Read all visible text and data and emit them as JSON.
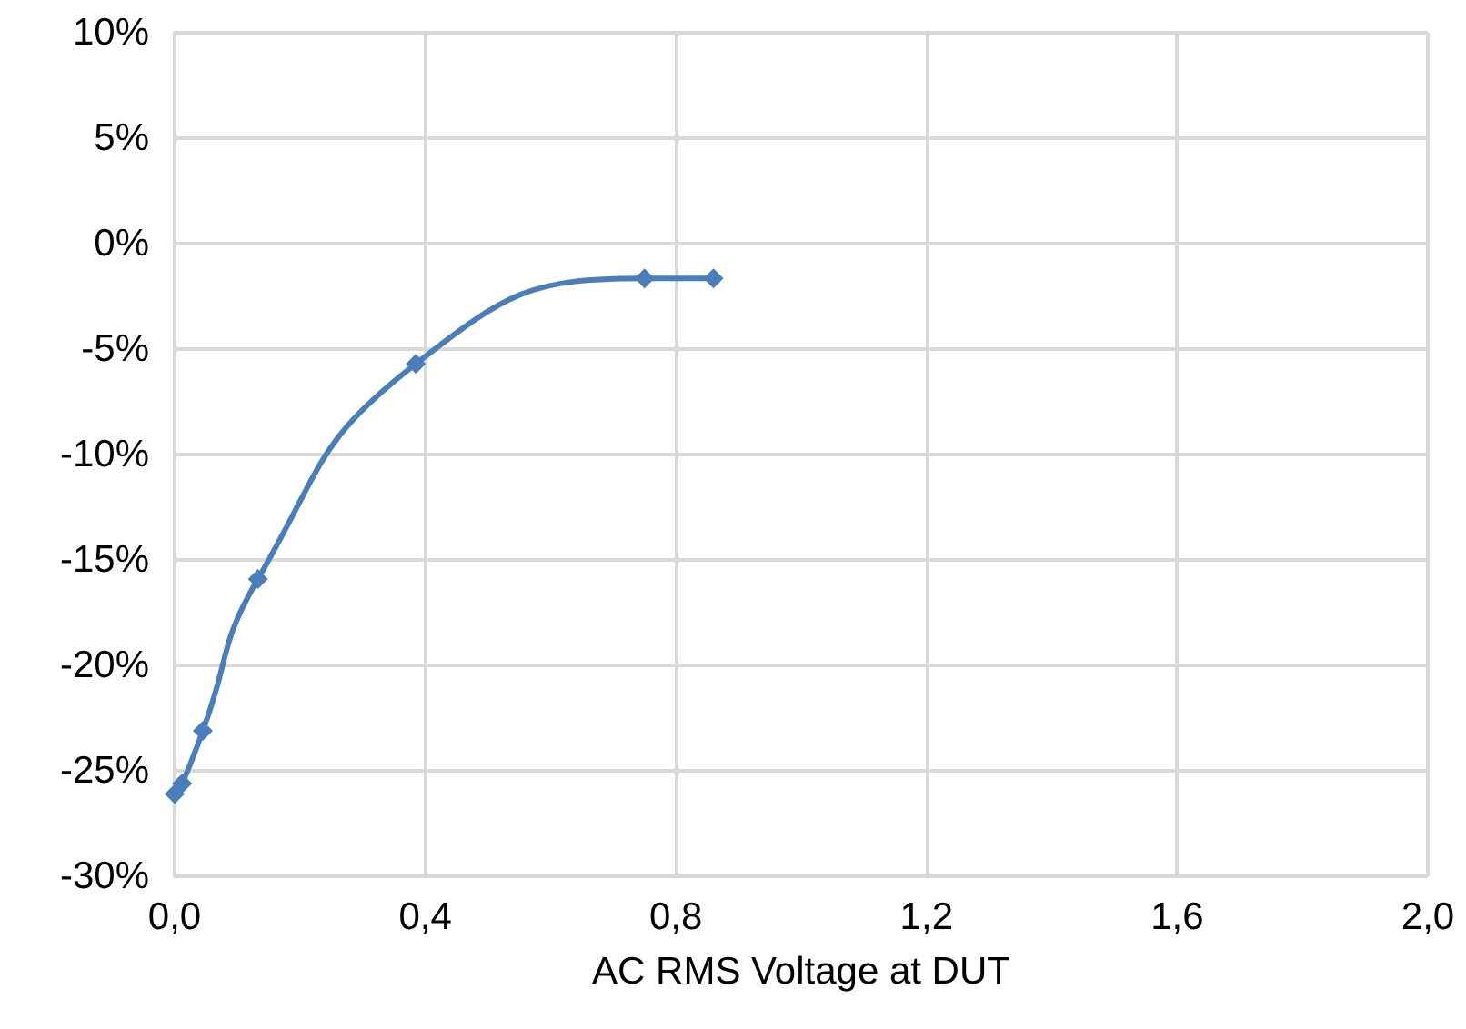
{
  "chart_data": {
    "type": "line",
    "xlabel": "AC RMS Voltage at DUT",
    "series": [
      {
        "color": "#4a7ebb",
        "x": [
          0.0,
          0.012,
          0.045,
          0.133,
          0.385,
          0.75,
          0.86
        ],
        "values": [
          -26.1,
          -25.6,
          -23.1,
          -15.9,
          -5.7,
          -1.65,
          -1.65
        ]
      }
    ],
    "xlim": [
      0,
      2
    ],
    "xticks": [
      {
        "value": 0,
        "label": "0,0"
      },
      {
        "value": 0.4,
        "label": "0,4"
      },
      {
        "value": 0.8,
        "label": "0,8"
      },
      {
        "value": 1.2,
        "label": "1,2"
      },
      {
        "value": 1.6,
        "label": "1,6"
      },
      {
        "value": 2,
        "label": "2,0"
      }
    ],
    "ylim": [
      -30,
      10
    ],
    "yticks": [
      {
        "value": -30,
        "label": "-30%"
      },
      {
        "value": -25,
        "label": "-25%"
      },
      {
        "value": -20,
        "label": "-20%"
      },
      {
        "value": -15,
        "label": "-15%"
      },
      {
        "value": -10,
        "label": "-10%"
      },
      {
        "value": -5,
        "label": "-5%"
      },
      {
        "value": 0,
        "label": "0%"
      },
      {
        "value": 5,
        "label": "5%"
      },
      {
        "value": 10,
        "label": "10%"
      }
    ],
    "grid": true,
    "marker": "diamond",
    "line_style": "solid"
  }
}
